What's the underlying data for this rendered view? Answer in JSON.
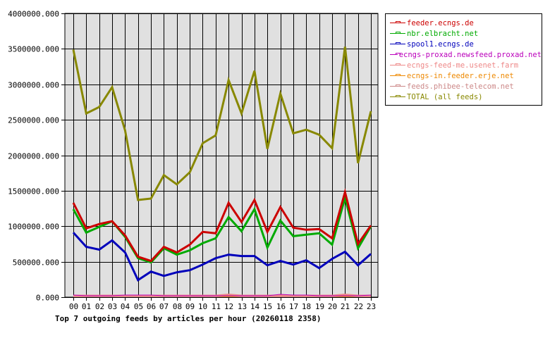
{
  "chart_data": {
    "type": "line",
    "title": "Top 7 outgoing feeds by articles per hour (20260118 2358)",
    "xlabel": "",
    "ylabel": "",
    "ylim": [
      0,
      4000000
    ],
    "grid": true,
    "legend_position": "right",
    "y_ticks": [
      "0.000",
      "500000.000",
      "1000000.000",
      "1500000.000",
      "2000000.000",
      "2500000.000",
      "3000000.000",
      "3500000.000",
      "4000000.000"
    ],
    "categories": [
      "00",
      "01",
      "02",
      "03",
      "04",
      "05",
      "06",
      "07",
      "08",
      "09",
      "10",
      "11",
      "12",
      "13",
      "14",
      "15",
      "16",
      "17",
      "18",
      "19",
      "20",
      "21",
      "22",
      "23"
    ],
    "series": [
      {
        "name": "feeder.ecngs.de",
        "color": "#cc0000",
        "width": 3,
        "values": [
          1330000,
          970000,
          1030000,
          1070000,
          870000,
          570000,
          510000,
          710000,
          630000,
          740000,
          920000,
          900000,
          1330000,
          1060000,
          1370000,
          920000,
          1270000,
          980000,
          950000,
          960000,
          830000,
          1480000,
          750000,
          1010000
        ]
      },
      {
        "name": "nbr.elbracht.net",
        "color": "#00aa00",
        "width": 3,
        "values": [
          1240000,
          910000,
          990000,
          1070000,
          850000,
          550000,
          490000,
          690000,
          600000,
          660000,
          760000,
          830000,
          1130000,
          930000,
          1240000,
          700000,
          1080000,
          860000,
          880000,
          900000,
          740000,
          1400000,
          690000,
          1000000
        ]
      },
      {
        "name": "spool1.ecngs.de",
        "color": "#0000bb",
        "width": 3,
        "values": [
          910000,
          710000,
          670000,
          800000,
          630000,
          240000,
          360000,
          300000,
          350000,
          380000,
          460000,
          550000,
          600000,
          580000,
          580000,
          450000,
          510000,
          460000,
          520000,
          410000,
          540000,
          640000,
          450000,
          610000
        ]
      },
      {
        "name": "ecngs-proxad.newsfeed.proxad.net",
        "color": "#bb00bb",
        "width": 1,
        "values": [
          30000,
          20000,
          20000,
          20000,
          30000,
          30000,
          30000,
          20000,
          20000,
          20000,
          20000,
          20000,
          20000,
          20000,
          20000,
          20000,
          40000,
          30000,
          30000,
          20000,
          20000,
          20000,
          20000,
          30000
        ]
      },
      {
        "name": "ecngs-feed-me.usenet.farm",
        "color": "#ee8888",
        "width": 3,
        "values": [
          20000,
          20000,
          20000,
          20000,
          20000,
          20000,
          20000,
          20000,
          20000,
          20000,
          20000,
          20000,
          35000,
          20000,
          20000,
          20000,
          20000,
          20000,
          20000,
          20000,
          20000,
          35000,
          20000,
          20000
        ]
      },
      {
        "name": "ecngs-in.feeder.erje.net",
        "color": "#ee8800",
        "width": 1,
        "values": [
          10000,
          10000,
          10000,
          10000,
          10000,
          10000,
          10000,
          10000,
          10000,
          10000,
          10000,
          10000,
          10000,
          10000,
          10000,
          10000,
          10000,
          10000,
          10000,
          10000,
          10000,
          10000,
          10000,
          10000
        ]
      },
      {
        "name": "feeds.phibee-telecom.net",
        "color": "#cc8888",
        "width": 3,
        "values": [
          15000,
          15000,
          15000,
          15000,
          15000,
          15000,
          15000,
          15000,
          15000,
          15000,
          15000,
          15000,
          15000,
          15000,
          15000,
          15000,
          15000,
          15000,
          15000,
          15000,
          15000,
          15000,
          15000,
          15000
        ]
      },
      {
        "name": "TOTAL (all feeds)",
        "color": "#888800",
        "width": 3,
        "values": [
          3490000,
          2590000,
          2680000,
          2960000,
          2350000,
          1370000,
          1390000,
          1720000,
          1590000,
          1760000,
          2170000,
          2280000,
          3060000,
          2590000,
          3190000,
          2090000,
          2870000,
          2310000,
          2360000,
          2290000,
          2100000,
          3530000,
          1890000,
          2620000
        ]
      }
    ]
  },
  "legend": {
    "items": [
      {
        "label": "feeder.ecngs.de",
        "color": "#cc0000"
      },
      {
        "label": "nbr.elbracht.net",
        "color": "#00aa00"
      },
      {
        "label": "spool1.ecngs.de",
        "color": "#0000bb"
      },
      {
        "label": "ecngs-proxad.newsfeed.proxad.net",
        "color": "#bb00bb"
      },
      {
        "label": "ecngs-feed-me.usenet.farm",
        "color": "#ee8888"
      },
      {
        "label": "ecngs-in.feeder.erje.net",
        "color": "#ee8800"
      },
      {
        "label": "feeds.phibee-telecom.net",
        "color": "#cc8888"
      },
      {
        "label": "TOTAL (all feeds)",
        "color": "#888800"
      }
    ]
  }
}
